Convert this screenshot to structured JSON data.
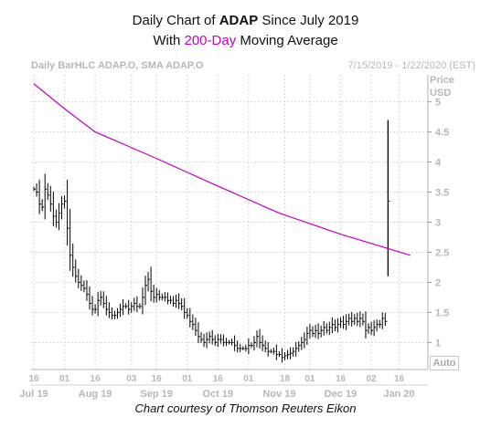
{
  "title": {
    "line1_prefix": "Daily Chart of ",
    "line1_ticker": "ADAP",
    "line1_suffix": " Since July 2019",
    "line2_prefix": "With ",
    "line2_accent": "200-Day",
    "line2_suffix": " Moving Average"
  },
  "header": {
    "left": "Daily BarHLC ADAP.O, SMA ADAP.O",
    "right": "7/15/2019 - 1/22/2020 (EST)"
  },
  "y_axis_unit": [
    "Price",
    "USD"
  ],
  "auto_label": "Auto",
  "credit": "Chart courtesy of Thomson Reuters Eikon",
  "colors": {
    "price": "#000000",
    "sma": "#c000c0",
    "grid": "#d8d8d8",
    "axis_text": "#b7b7b7",
    "accent": "#c000c0"
  },
  "chart_data": {
    "type": "line",
    "title": "Daily Chart of ADAP Since July 2019 With 200-Day Moving Average",
    "ylabel": "Price USD",
    "ylim": [
      0.55,
      5.45
    ],
    "yticks": [
      1,
      1.5,
      2,
      2.5,
      3,
      3.5,
      4,
      4.5,
      5
    ],
    "ytick_labels": [
      "1",
      "1.5",
      "2",
      "2.5",
      "3",
      "3.5",
      "4",
      "4.5",
      "5"
    ],
    "grid": true,
    "x_day_ticks": [
      {
        "label": "16",
        "idx": 0
      },
      {
        "label": "01",
        "idx": 11
      },
      {
        "label": "16",
        "idx": 22
      },
      {
        "label": "03",
        "idx": 35
      },
      {
        "label": "16",
        "idx": 44
      },
      {
        "label": "01",
        "idx": 55
      },
      {
        "label": "16",
        "idx": 66
      },
      {
        "label": "01",
        "idx": 77
      },
      {
        "label": "18",
        "idx": 90
      },
      {
        "label": "01",
        "idx": 99
      },
      {
        "label": "16",
        "idx": 110
      },
      {
        "label": "02",
        "idx": 121
      },
      {
        "label": "16",
        "idx": 131
      }
    ],
    "x_month_labels": [
      {
        "label": "Jul 19",
        "idx": 0
      },
      {
        "label": "Aug 19",
        "idx": 22
      },
      {
        "label": "Sep 19",
        "idx": 44
      },
      {
        "label": "Oct 19",
        "idx": 66
      },
      {
        "label": "Nov 19",
        "idx": 88
      },
      {
        "label": "Dec 19",
        "idx": 110
      },
      {
        "label": "Jan 20",
        "idx": 131
      }
    ],
    "series": [
      {
        "type": "bar_hlc",
        "close": [
          3.55,
          3.5,
          3.3,
          3.25,
          3.55,
          3.45,
          3.3,
          3.1,
          3.0,
          3.15,
          3.3,
          3.35,
          2.9,
          2.45,
          2.25,
          2.1,
          2.0,
          1.95,
          1.9,
          1.8,
          1.65,
          1.55,
          1.55,
          1.7,
          1.75,
          1.65,
          1.55,
          1.5,
          1.45,
          1.45,
          1.5,
          1.55,
          1.6,
          1.6,
          1.55,
          1.6,
          1.65,
          1.6,
          1.6,
          1.75,
          1.95,
          2.05,
          1.85,
          1.75,
          1.8,
          1.75,
          1.75,
          1.75,
          1.7,
          1.7,
          1.65,
          1.7,
          1.65,
          1.6,
          1.5,
          1.45,
          1.35,
          1.3,
          1.2,
          1.1,
          1.05,
          1.0,
          1.05,
          1.1,
          1.05,
          1.0,
          1.05,
          1.05,
          1.0,
          1.0,
          1.0,
          1.0,
          0.95,
          0.9,
          0.9,
          0.9,
          0.9,
          0.95,
          0.95,
          1.0,
          1.1,
          1.0,
          0.95,
          0.9,
          0.85,
          0.85,
          0.85,
          0.8,
          0.8,
          0.75,
          0.78,
          0.8,
          0.82,
          0.85,
          0.9,
          0.95,
          1.0,
          1.05,
          1.15,
          1.2,
          1.15,
          1.2,
          1.15,
          1.2,
          1.25,
          1.2,
          1.25,
          1.3,
          1.25,
          1.3,
          1.35,
          1.3,
          1.35,
          1.4,
          1.35,
          1.4,
          1.35,
          1.4,
          1.35,
          1.2,
          1.25,
          1.2,
          1.25,
          1.3,
          1.3,
          1.4,
          1.35
        ],
        "spike": {
          "high": 4.7,
          "low": 2.1,
          "close": 3.35
        }
      },
      {
        "type": "sma",
        "points": [
          [
            0,
            5.3
          ],
          [
            12,
            4.85
          ],
          [
            22,
            4.5
          ],
          [
            42,
            4.1
          ],
          [
            66,
            3.6
          ],
          [
            88,
            3.15
          ],
          [
            110,
            2.8
          ],
          [
            135,
            2.45
          ]
        ]
      }
    ]
  }
}
